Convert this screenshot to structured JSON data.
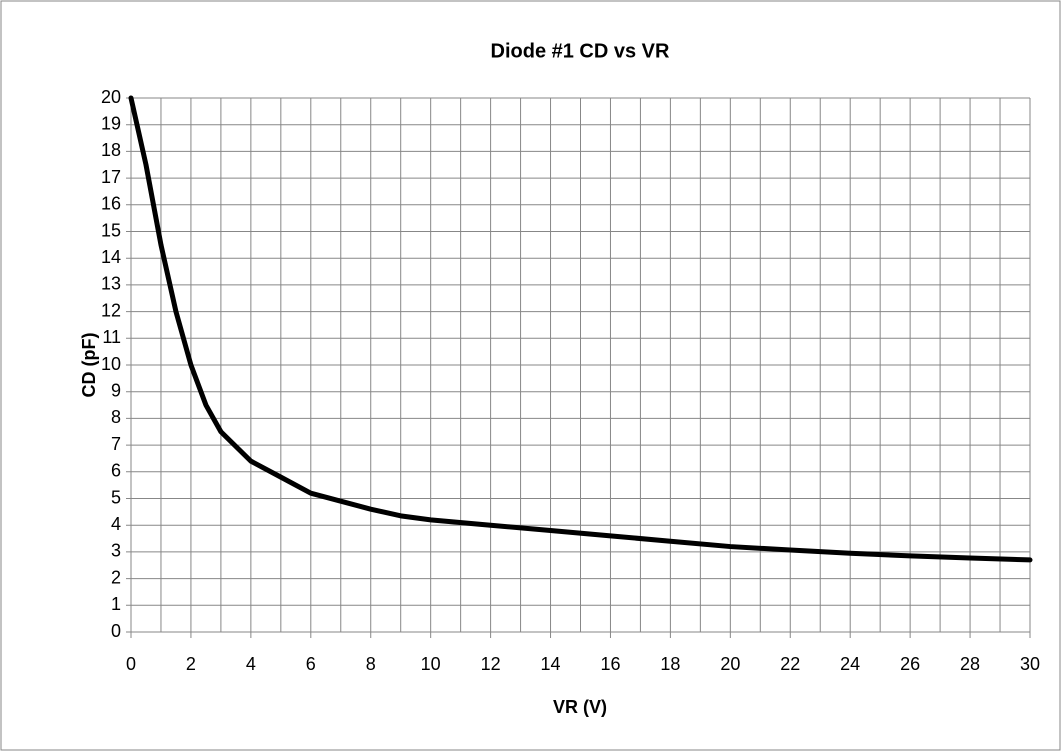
{
  "chart_data": {
    "type": "line",
    "title": "Diode #1 CD vs VR",
    "xlabel": "VR (V)",
    "ylabel": "CD (pF)",
    "x": [
      0,
      0.5,
      1,
      1.5,
      2,
      2.5,
      3,
      4,
      5,
      6,
      7,
      8,
      9,
      10,
      12,
      14,
      16,
      18,
      20,
      22,
      24,
      26,
      28,
      30
    ],
    "series": [
      {
        "name": "CD",
        "color": "#000000",
        "values": [
          20,
          17.5,
          14.5,
          12,
          10,
          8.5,
          7.5,
          6.4,
          5.8,
          5.2,
          4.9,
          4.6,
          4.35,
          4.2,
          4.0,
          3.8,
          3.6,
          3.4,
          3.2,
          3.07,
          2.95,
          2.85,
          2.77,
          2.7
        ]
      }
    ],
    "xlim": [
      0,
      30
    ],
    "ylim": [
      0,
      20
    ],
    "xticks": [
      0,
      2,
      4,
      6,
      8,
      10,
      12,
      14,
      16,
      18,
      20,
      22,
      24,
      26,
      28,
      30
    ],
    "xminorticks": [
      1,
      3,
      5,
      7,
      9,
      11,
      13,
      15,
      17,
      19,
      21,
      23,
      25,
      27,
      29
    ],
    "yticks": [
      0,
      1,
      2,
      3,
      4,
      5,
      6,
      7,
      8,
      9,
      10,
      11,
      12,
      13,
      14,
      15,
      16,
      17,
      18,
      19,
      20
    ],
    "grid": true
  }
}
